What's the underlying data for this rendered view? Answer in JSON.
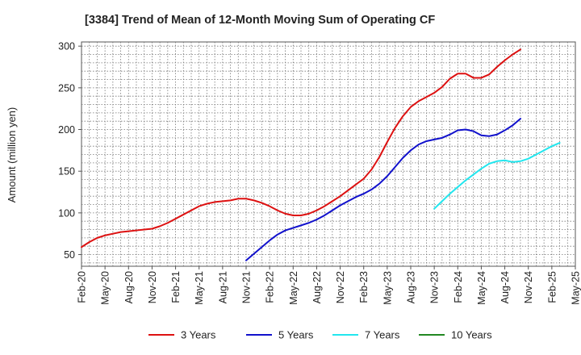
{
  "chart_data": {
    "type": "line",
    "title": "[3384]  Trend of Mean of 12-Month Moving Sum of Operating CF",
    "xlabel": "",
    "ylabel": "Amount (million yen)",
    "ylim": [
      36,
      305
    ],
    "yticks": [
      50,
      100,
      150,
      200,
      250,
      300
    ],
    "grid": true,
    "legend_position": "bottom",
    "x_tick_labels": [
      "Feb-20",
      "May-20",
      "Aug-20",
      "Nov-20",
      "Feb-21",
      "May-21",
      "Aug-21",
      "Nov-21",
      "Feb-22",
      "May-22",
      "Aug-22",
      "Nov-22",
      "Feb-23",
      "May-23",
      "Aug-23",
      "Nov-23",
      "Feb-24",
      "May-24",
      "Aug-24",
      "Nov-24",
      "Feb-25",
      "May-25"
    ],
    "series": [
      {
        "name": "3 Years",
        "color": "#dd1111",
        "start_index": 0,
        "values": [
          59,
          65,
          70,
          73,
          75,
          77,
          78,
          79,
          80,
          81,
          84,
          88,
          93,
          98,
          103,
          108,
          111,
          113,
          114,
          115,
          117,
          117,
          115,
          112,
          108,
          103,
          99,
          97,
          97,
          99,
          103,
          108,
          114,
          120,
          127,
          134,
          141,
          152,
          167,
          185,
          202,
          216,
          227,
          234,
          239,
          244,
          251,
          261,
          267,
          267,
          262,
          262,
          266,
          275,
          283,
          290,
          296
        ]
      },
      {
        "name": "5 Years",
        "color": "#1111cc",
        "start_index": 21,
        "values": [
          43,
          51,
          59,
          67,
          74,
          79,
          82,
          85,
          88,
          92,
          97,
          103,
          109,
          114,
          119,
          123,
          128,
          135,
          144,
          155,
          166,
          175,
          182,
          186,
          188,
          190,
          194,
          199,
          200,
          198,
          193,
          192,
          194,
          199,
          205,
          213
        ]
      },
      {
        "name": "7 Years",
        "color": "#22e6ee",
        "start_index": 45,
        "values": [
          105,
          114,
          123,
          131,
          139,
          146,
          153,
          159,
          162,
          163,
          161,
          162,
          165,
          170,
          175,
          180,
          184
        ]
      },
      {
        "name": "10 Years",
        "color": "#228822",
        "start_index": 0,
        "values": []
      }
    ]
  }
}
